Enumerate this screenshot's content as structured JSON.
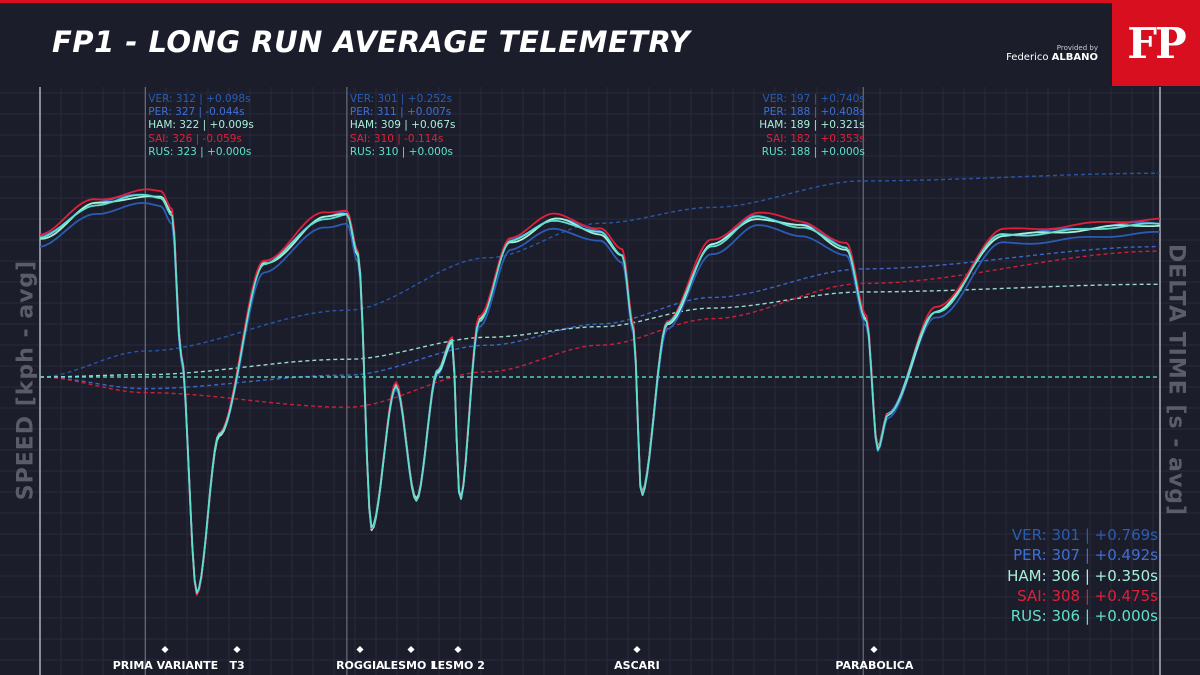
{
  "header": {
    "title": "FP1 - LONG RUN AVERAGE TELEMETRY",
    "provided_by": "Provided by",
    "author_first": "Federico",
    "author_last": "ALBANO",
    "logo": "FP"
  },
  "colors": {
    "background": "#1b1d2b",
    "grid": "#2a2c3b",
    "accent": "#d70f1e",
    "VER": "#2b5cb4",
    "PER": "#3f6fd6",
    "HAM": "#a8f0dc",
    "SAI": "#e0203a",
    "RUS": "#5fe0cc"
  },
  "axes": {
    "left_label": "SPEED [kph - avg]",
    "right_label": "DELTA TIME [s - avg]"
  },
  "corners": [
    {
      "name": "PRIMA VARIANTE",
      "pos": 0.112
    },
    {
      "name": "T3",
      "pos": 0.176
    },
    {
      "name": "ROGGIA",
      "pos": 0.286
    },
    {
      "name": "LESMO 1",
      "pos": 0.331
    },
    {
      "name": "LESMO 2",
      "pos": 0.373
    },
    {
      "name": "ASCARI",
      "pos": 0.533
    },
    {
      "name": "PARABOLICA",
      "pos": 0.745
    }
  ],
  "checkpoints": [
    {
      "pos": 0.094,
      "rows": [
        {
          "driver": "VER",
          "text": "VER: 312 | +0.098s"
        },
        {
          "driver": "PER",
          "text": "PER: 327 | -0.044s"
        },
        {
          "driver": "HAM",
          "text": "HAM: 322 | +0.009s"
        },
        {
          "driver": "SAI",
          "text": "SAI: 326 | -0.059s"
        },
        {
          "driver": "RUS",
          "text": "RUS: 323 | +0.000s"
        }
      ]
    },
    {
      "pos": 0.274,
      "rows": [
        {
          "driver": "VER",
          "text": "VER: 301 | +0.252s"
        },
        {
          "driver": "PER",
          "text": "PER: 311 | +0.007s"
        },
        {
          "driver": "HAM",
          "text": "HAM: 309 | +0.067s"
        },
        {
          "driver": "SAI",
          "text": "SAI: 310 | -0.114s"
        },
        {
          "driver": "RUS",
          "text": "RUS: 310 | +0.000s"
        }
      ]
    },
    {
      "pos": 0.735,
      "rows": [
        {
          "driver": "VER",
          "text": "VER: 197 | +0.740s"
        },
        {
          "driver": "PER",
          "text": "PER: 188 | +0.408s"
        },
        {
          "driver": "HAM",
          "text": "HAM: 189 | +0.321s"
        },
        {
          "driver": "SAI",
          "text": "SAI: 182 | +0.353s"
        },
        {
          "driver": "RUS",
          "text": "RUS: 188 | +0.000s"
        }
      ]
    }
  ],
  "summary": [
    {
      "driver": "VER",
      "text": "VER: 301 | +0.769s"
    },
    {
      "driver": "PER",
      "text": "PER: 307 | +0.492s"
    },
    {
      "driver": "HAM",
      "text": "HAM: 306 | +0.350s"
    },
    {
      "driver": "SAI",
      "text": "SAI: 308 | +0.475s"
    },
    {
      "driver": "RUS",
      "text": "RUS: 306 | +0.000s"
    }
  ],
  "chart_data": {
    "type": "line",
    "title": "FP1 - LONG RUN AVERAGE TELEMETRY",
    "xlabel": "",
    "ylabel": "SPEED [kph - avg]",
    "y2label": "DELTA TIME [s - avg]",
    "xlim": [
      0,
      1
    ],
    "ylim_speed": [
      70,
      345
    ],
    "ylim_delta": [
      -0.8,
      1.0
    ],
    "grid": true,
    "x_unit": "fraction of lap distance",
    "speed_base": {
      "x": [
        0.0,
        0.05,
        0.094,
        0.108,
        0.118,
        0.126,
        0.14,
        0.16,
        0.2,
        0.255,
        0.274,
        0.284,
        0.296,
        0.318,
        0.336,
        0.355,
        0.368,
        0.375,
        0.392,
        0.42,
        0.46,
        0.5,
        0.52,
        0.53,
        0.537,
        0.56,
        0.6,
        0.64,
        0.68,
        0.72,
        0.738,
        0.748,
        0.757,
        0.8,
        0.86,
        1.0
      ],
      "y": [
        298,
        318,
        323,
        322,
        312,
        230,
        90,
        183,
        283,
        310,
        312,
        288,
        128,
        212,
        145,
        220,
        238,
        145,
        250,
        296,
        309,
        301,
        288,
        245,
        148,
        248,
        294,
        310,
        305,
        292,
        250,
        175,
        195,
        255,
        300,
        306
      ]
    },
    "speed_series": [
      {
        "name": "VER",
        "offset": -5
      },
      {
        "name": "PER",
        "offset": 1
      },
      {
        "name": "HAM",
        "offset": 0
      },
      {
        "name": "SAI",
        "offset": 3
      },
      {
        "name": "RUS",
        "offset": 0
      }
    ],
    "delta_series": [
      {
        "name": "VER",
        "x": [
          0,
          0.094,
          0.274,
          0.4,
          0.5,
          0.6,
          0.735,
          1.0
        ],
        "y": [
          0,
          0.098,
          0.252,
          0.45,
          0.58,
          0.64,
          0.74,
          0.769
        ]
      },
      {
        "name": "PER",
        "x": [
          0,
          0.094,
          0.274,
          0.4,
          0.5,
          0.6,
          0.735,
          1.0
        ],
        "y": [
          0,
          -0.044,
          0.007,
          0.12,
          0.2,
          0.3,
          0.408,
          0.492
        ]
      },
      {
        "name": "HAM",
        "x": [
          0,
          0.094,
          0.274,
          0.4,
          0.5,
          0.6,
          0.735,
          1.0
        ],
        "y": [
          0,
          0.009,
          0.067,
          0.15,
          0.19,
          0.26,
          0.321,
          0.35
        ]
      },
      {
        "name": "SAI",
        "x": [
          0,
          0.094,
          0.274,
          0.4,
          0.5,
          0.6,
          0.735,
          1.0
        ],
        "y": [
          0,
          -0.059,
          -0.114,
          0.02,
          0.12,
          0.22,
          0.353,
          0.475
        ]
      },
      {
        "name": "RUS",
        "x": [
          0,
          1.0
        ],
        "y": [
          0,
          0.0
        ]
      }
    ]
  }
}
